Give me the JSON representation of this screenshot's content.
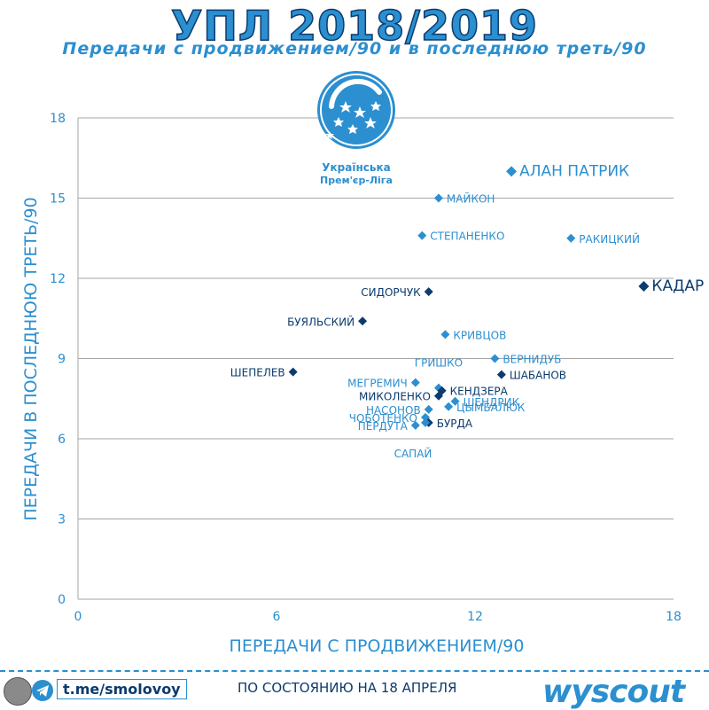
{
  "header": {
    "title": "УПЛ 2018/2019",
    "subtitle": "Передачи с продвижением/90 и в последнюю треть/90"
  },
  "logo": {
    "line1": "Українська",
    "line2": "Прем'єр-Ліга"
  },
  "footer": {
    "handle": "t.me/smolovoy",
    "as_of": "ПО СОСТОЯНИЮ НА 18 АПРЕЛЯ",
    "brand": "wyscout"
  },
  "colors": {
    "accent": "#2b8fd0",
    "dark": "#0c3b6e",
    "grid": "#a6a6a6"
  },
  "chart_data": {
    "type": "scatter",
    "xlabel": "ПЕРЕДАЧИ С ПРОДВИЖЕНИЕМ/90",
    "ylabel": "ПЕРЕДАЧИ В ПОСЛЕДНЮЮ ТРЕТЬ/90",
    "xlim": [
      0,
      18
    ],
    "ylim": [
      0,
      18
    ],
    "xticks": [
      0,
      6,
      12,
      18
    ],
    "yticks": [
      0,
      3,
      6,
      9,
      12,
      15,
      18
    ],
    "grid": "horizontal",
    "points": [
      {
        "label": "АЛАН ПАТРИК",
        "x": 13.1,
        "y": 16.0,
        "color": "#2b8fd0",
        "label_side": "right",
        "large": true
      },
      {
        "label": "МАЙКОН",
        "x": 10.9,
        "y": 15.0,
        "color": "#2b8fd0",
        "label_side": "right"
      },
      {
        "label": "СТЕПАНЕНКО",
        "x": 10.4,
        "y": 13.6,
        "color": "#2b8fd0",
        "label_side": "right"
      },
      {
        "label": "РАКИЦКИЙ",
        "x": 14.9,
        "y": 13.5,
        "color": "#2b8fd0",
        "label_side": "right"
      },
      {
        "label": "КАДАР",
        "x": 17.1,
        "y": 11.7,
        "color": "#0c3b6e",
        "label_side": "right",
        "large": true
      },
      {
        "label": "СИДОРЧУК",
        "x": 10.6,
        "y": 11.5,
        "color": "#0c3b6e",
        "label_side": "left"
      },
      {
        "label": "БУЯЛЬСКИЙ",
        "x": 8.6,
        "y": 10.4,
        "color": "#0c3b6e",
        "label_side": "left"
      },
      {
        "label": "КРИВЦОВ",
        "x": 11.1,
        "y": 9.9,
        "color": "#2b8fd0",
        "label_side": "right"
      },
      {
        "label": "ВЕРНИДУБ",
        "x": 12.6,
        "y": 9.0,
        "color": "#2b8fd0",
        "label_side": "right"
      },
      {
        "label": "ШЕПЕЛЕВ",
        "x": 6.5,
        "y": 8.5,
        "color": "#0c3b6e",
        "label_side": "left"
      },
      {
        "label": "ШАБАНОВ",
        "x": 12.8,
        "y": 8.4,
        "color": "#0c3b6e",
        "label_side": "right"
      },
      {
        "label": "ГРИШКО",
        "x": 10.9,
        "y": 7.9,
        "color": "#2b8fd0",
        "label_side": "above"
      },
      {
        "label": "МЕГРЕМИЧ",
        "x": 10.2,
        "y": 8.1,
        "color": "#2b8fd0",
        "label_side": "left"
      },
      {
        "label": "КЕНДЗЕРА",
        "x": 11.0,
        "y": 7.8,
        "color": "#0c3b6e",
        "label_side": "right"
      },
      {
        "label": "МИКОЛЕНКО",
        "x": 10.9,
        "y": 7.6,
        "color": "#0c3b6e",
        "label_side": "left"
      },
      {
        "label": "ШЕНДРИК",
        "x": 11.4,
        "y": 7.4,
        "color": "#2b8fd0",
        "label_side": "right"
      },
      {
        "label": "ЦЫМБАЛЮК",
        "x": 11.2,
        "y": 7.2,
        "color": "#2b8fd0",
        "label_side": "right"
      },
      {
        "label": "НАСОНОВ",
        "x": 10.6,
        "y": 7.1,
        "color": "#2b8fd0",
        "label_side": "left"
      },
      {
        "label": "ЧОБОТЕНКО",
        "x": 10.5,
        "y": 6.8,
        "color": "#2b8fd0",
        "label_side": "left"
      },
      {
        "label": "БУРДА",
        "x": 10.6,
        "y": 6.6,
        "color": "#0c3b6e",
        "label_side": "right"
      },
      {
        "label": "ПЕРДУТА",
        "x": 10.2,
        "y": 6.5,
        "color": "#2b8fd0",
        "label_side": "left"
      },
      {
        "label": "САПАЙ",
        "x": 10.5,
        "y": 6.6,
        "color": "#2b8fd0",
        "label_side": "below"
      }
    ]
  }
}
